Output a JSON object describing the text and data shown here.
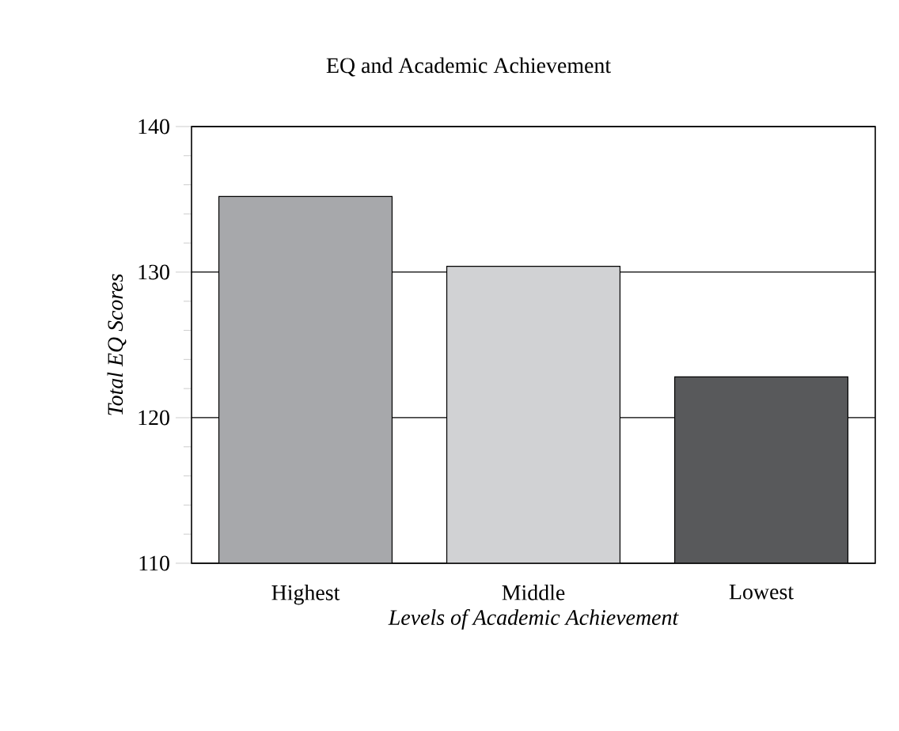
{
  "chart_data": {
    "type": "bar",
    "title": "EQ and Academic Achievement",
    "xlabel": "Levels of Academic Achievement",
    "ylabel": "Total EQ Scores",
    "categories": [
      "Highest",
      "Middle",
      "Lowest"
    ],
    "values": [
      135.2,
      130.4,
      122.8
    ],
    "colors": [
      "#a7a8ab",
      "#d1d2d4",
      "#58595b"
    ],
    "ylim": [
      110,
      140
    ],
    "yticks": [
      110,
      120,
      130,
      140
    ],
    "grid": "y"
  }
}
